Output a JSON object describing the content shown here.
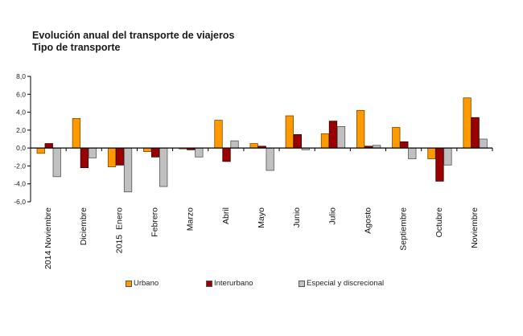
{
  "header": {
    "title": "Evolución anual del transporte de viajeros",
    "subtitle": "Tipo de transporte"
  },
  "chart_data": {
    "type": "bar",
    "title": "Evolución anual del transporte de viajeros",
    "subtitle": "Tipo de transporte",
    "xlabel": "",
    "ylabel": "",
    "ylim": [
      -6,
      8
    ],
    "yticks": [
      "8,0",
      "6,0",
      "4,0",
      "2,0",
      "0,0",
      "-2,0",
      "-4,0",
      "-6,0"
    ],
    "ytick_values": [
      8,
      6,
      4,
      2,
      0,
      -2,
      -4,
      -6
    ],
    "grid": false,
    "legend_position": "bottom",
    "categories": [
      "2014 Noviembre",
      "Diciembre",
      "2015  Enero",
      "Febrero",
      "Marzo",
      "Abril",
      "Mayo",
      "Junio",
      "Julio",
      "Agosto",
      "Septiembre",
      "Octubre",
      "Noviembre"
    ],
    "series": [
      {
        "name": "Urbano",
        "color": "#FF9900",
        "values": [
          -0.6,
          3.3,
          -2.1,
          -0.4,
          -0.1,
          3.1,
          0.5,
          3.6,
          1.6,
          4.2,
          2.3,
          -1.2,
          5.6
        ]
      },
      {
        "name": "Interurbano",
        "color": "#990000",
        "values": [
          0.5,
          -2.2,
          -1.9,
          -1.0,
          -0.2,
          -1.5,
          0.2,
          1.5,
          3.0,
          0.2,
          0.7,
          -3.7,
          3.4
        ]
      },
      {
        "name": "Especial y discrecional",
        "color": "#C0C0C0",
        "values": [
          -3.2,
          -1.1,
          -4.9,
          -4.3,
          -1.0,
          0.8,
          -2.5,
          -0.2,
          2.4,
          0.3,
          -1.2,
          -1.9,
          1.0
        ]
      }
    ]
  }
}
